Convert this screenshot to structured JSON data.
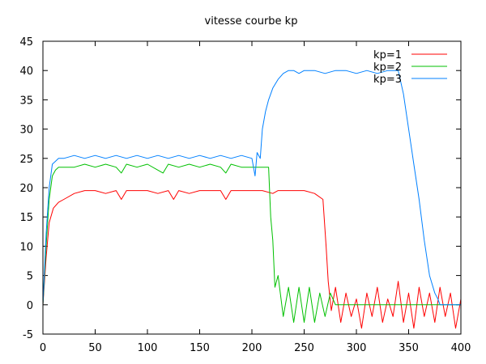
{
  "chart_data": {
    "type": "line",
    "title": "vitesse courbe kp",
    "xlabel": "",
    "ylabel": "",
    "xlim": [
      0,
      400
    ],
    "ylim": [
      -5,
      45
    ],
    "xticks": [
      0,
      50,
      100,
      150,
      200,
      250,
      300,
      350,
      400
    ],
    "yticks": [
      -5,
      0,
      5,
      10,
      15,
      20,
      25,
      30,
      35,
      40,
      45
    ],
    "grid": false,
    "legend_position": "top-right",
    "series": [
      {
        "name": "kp=1",
        "color": "#ff0000",
        "x": [
          0,
          3,
          6,
          10,
          15,
          20,
          30,
          40,
          50,
          60,
          70,
          75,
          80,
          90,
          100,
          110,
          120,
          125,
          130,
          140,
          150,
          160,
          170,
          175,
          180,
          190,
          200,
          210,
          220,
          225,
          230,
          240,
          250,
          260,
          268,
          271,
          273,
          276,
          280,
          285,
          290,
          295,
          300,
          305,
          310,
          315,
          320,
          325,
          330,
          335,
          340,
          345,
          350,
          355,
          360,
          365,
          370,
          375,
          380,
          385,
          390,
          395,
          400
        ],
        "y": [
          0,
          8,
          14,
          16.5,
          17.5,
          18,
          19,
          19.5,
          19.5,
          19,
          19.5,
          18,
          19.5,
          19.5,
          19.5,
          19,
          19.5,
          18,
          19.5,
          19,
          19.5,
          19.5,
          19.5,
          18,
          19.5,
          19.5,
          19.5,
          19.5,
          19,
          19.5,
          19.5,
          19.5,
          19.5,
          19,
          18,
          10,
          4,
          -1,
          3,
          -3,
          2,
          -2,
          1,
          -4,
          2,
          -2,
          3,
          -3,
          1,
          -2,
          4,
          -3,
          2,
          -4,
          3,
          -2,
          2,
          -3,
          3,
          -2,
          2,
          -4,
          1
        ]
      },
      {
        "name": "kp=2",
        "color": "#00c000",
        "x": [
          0,
          3,
          6,
          9,
          12,
          15,
          20,
          30,
          40,
          50,
          60,
          70,
          75,
          80,
          90,
          100,
          110,
          115,
          120,
          130,
          140,
          150,
          160,
          170,
          175,
          180,
          190,
          200,
          210,
          213,
          216,
          218,
          220,
          222,
          225,
          230,
          235,
          240,
          245,
          250,
          255,
          260,
          265,
          270,
          275,
          280,
          290,
          300,
          320,
          340,
          360,
          380,
          400
        ],
        "y": [
          0,
          10,
          18,
          22,
          23,
          23.5,
          23.5,
          23.5,
          24,
          23.5,
          24,
          23.5,
          22.5,
          24,
          23.5,
          24,
          23,
          22.5,
          24,
          23.5,
          24,
          23.5,
          24,
          23.5,
          22.5,
          24,
          23.5,
          23.5,
          23.5,
          23.5,
          23.5,
          15,
          11,
          3,
          5,
          -2,
          3,
          -3,
          3,
          -3,
          3,
          -3,
          2,
          -2,
          2,
          0,
          0,
          0,
          0,
          0,
          0,
          0,
          0
        ]
      },
      {
        "name": "kp=3",
        "color": "#0080ff",
        "x": [
          0,
          3,
          6,
          9,
          12,
          15,
          20,
          30,
          40,
          50,
          60,
          70,
          80,
          90,
          100,
          110,
          120,
          130,
          140,
          150,
          160,
          170,
          180,
          190,
          200,
          203,
          205,
          208,
          210,
          213,
          216,
          220,
          225,
          230,
          235,
          240,
          245,
          250,
          260,
          270,
          280,
          290,
          300,
          310,
          320,
          330,
          340,
          345,
          350,
          355,
          360,
          365,
          370,
          375,
          378,
          380,
          385,
          390,
          400
        ],
        "y": [
          0,
          12,
          20,
          24,
          24.5,
          25,
          25,
          25.5,
          25,
          25.5,
          25,
          25.5,
          25,
          25.5,
          25,
          25.5,
          25,
          25.5,
          25,
          25.5,
          25,
          25.5,
          25,
          25.5,
          25,
          22,
          26,
          25,
          30,
          33,
          35,
          37,
          38.5,
          39.5,
          40,
          40,
          39.5,
          40,
          40,
          39.5,
          40,
          40,
          39.5,
          40,
          39.5,
          40,
          40,
          36,
          30,
          24,
          18,
          11,
          5,
          2,
          1,
          0,
          0,
          0,
          0
        ]
      }
    ]
  }
}
